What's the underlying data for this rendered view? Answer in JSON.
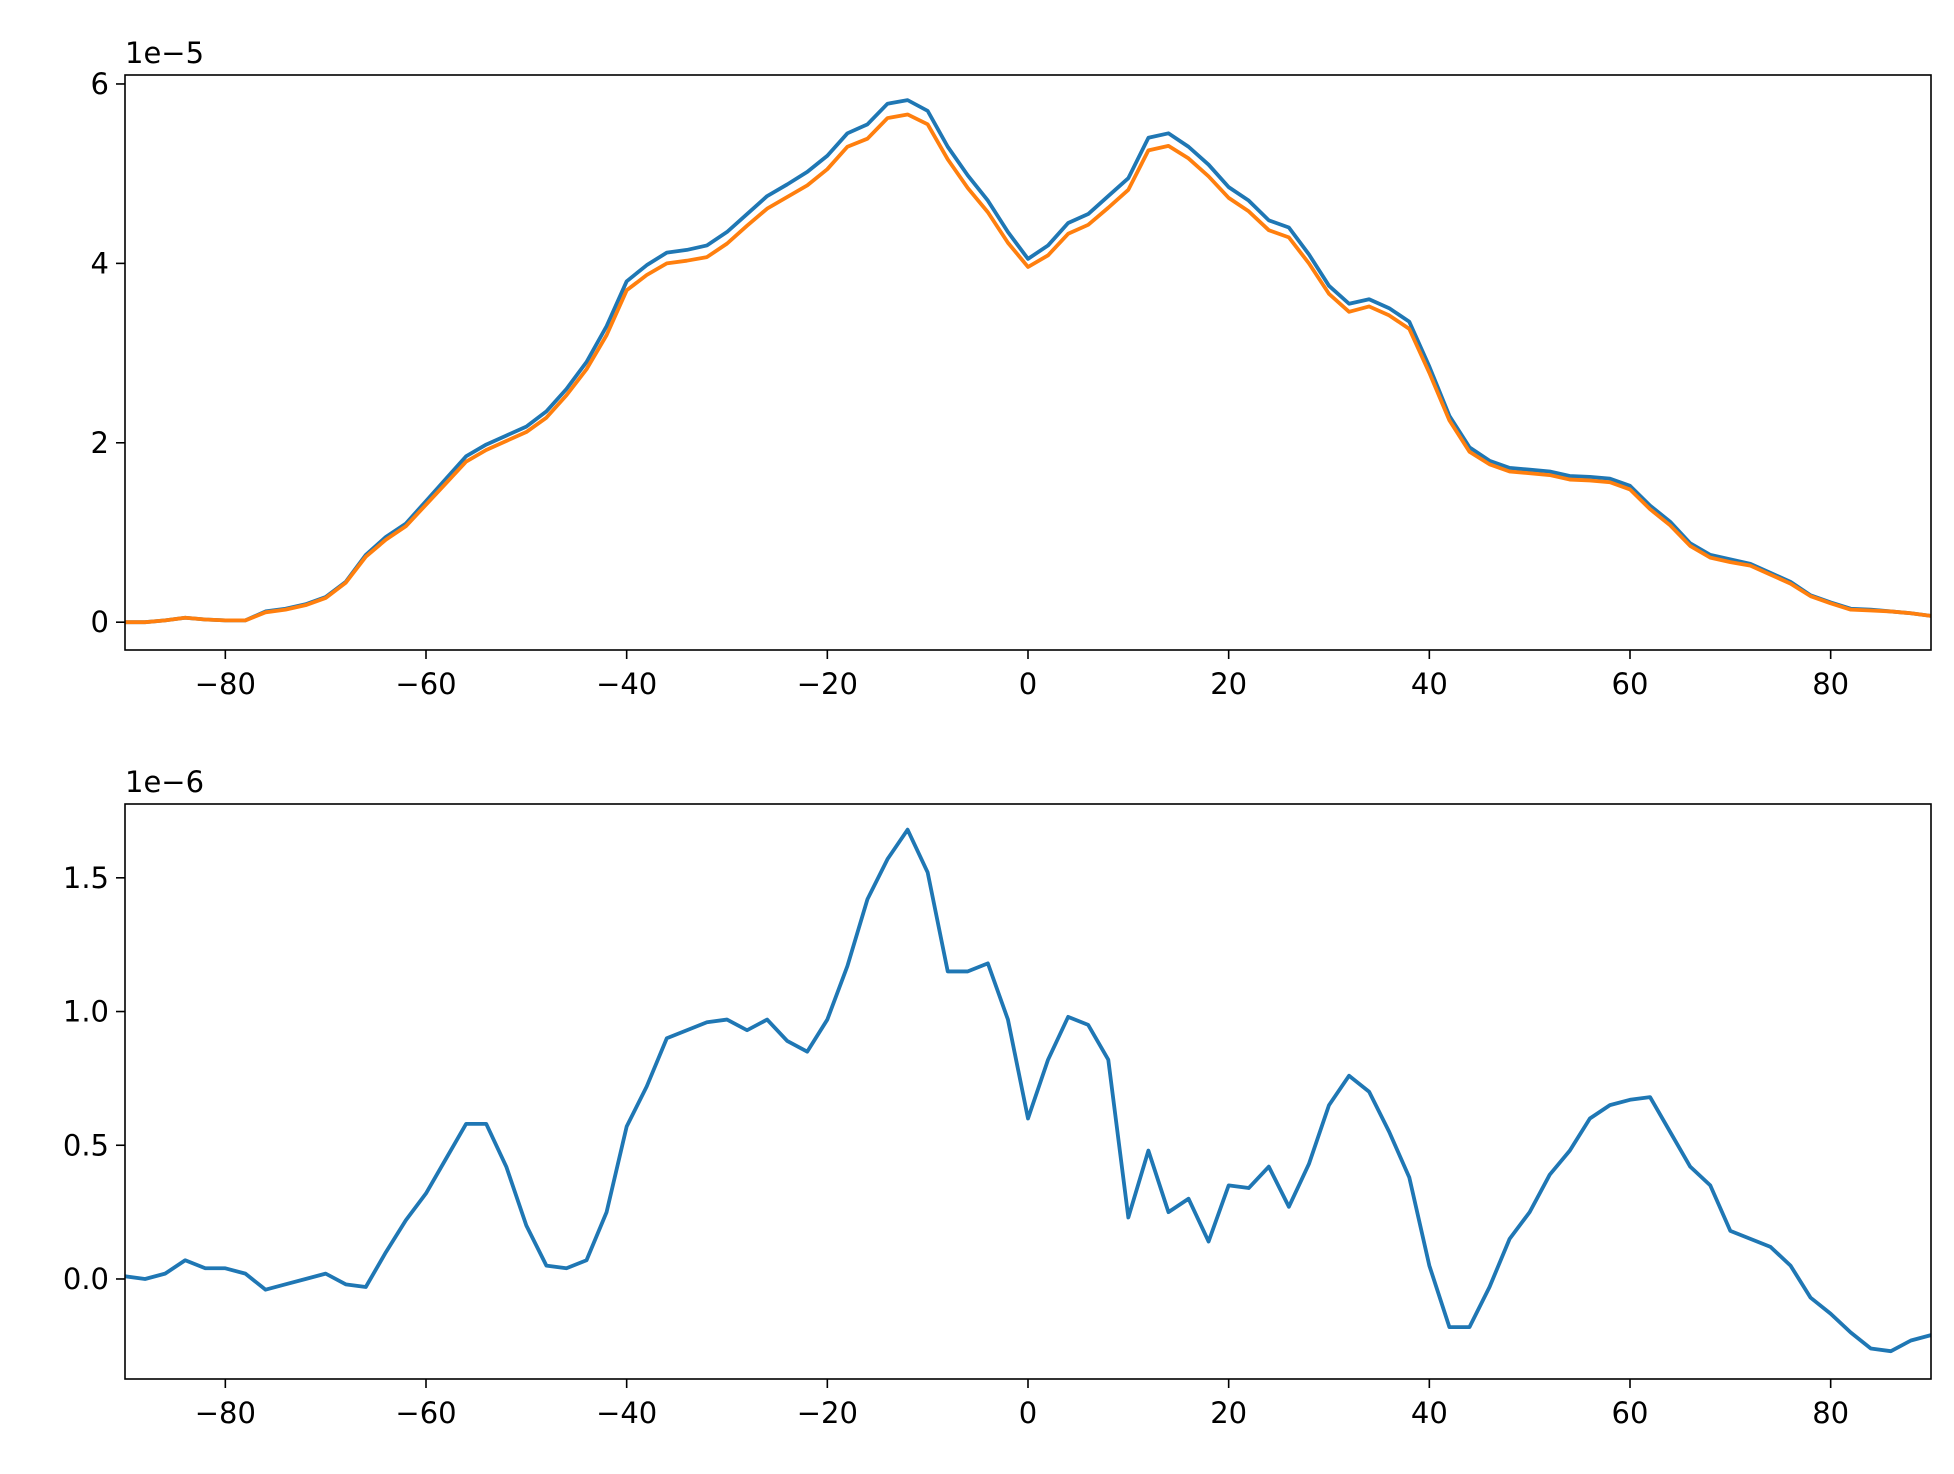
{
  "chart_data": [
    {
      "type": "line",
      "offset_text": "1e−5",
      "x": [
        -90,
        -88,
        -86,
        -84,
        -82,
        -80,
        -78,
        -76,
        -74,
        -72,
        -70,
        -68,
        -66,
        -64,
        -62,
        -60,
        -58,
        -56,
        -54,
        -52,
        -50,
        -48,
        -46,
        -44,
        -42,
        -40,
        -38,
        -36,
        -34,
        -32,
        -30,
        -28,
        -26,
        -24,
        -22,
        -20,
        -18,
        -16,
        -14,
        -12,
        -10,
        -8,
        -6,
        -4,
        -2,
        0,
        2,
        4,
        6,
        8,
        10,
        12,
        14,
        16,
        18,
        20,
        22,
        24,
        26,
        28,
        30,
        32,
        34,
        36,
        38,
        40,
        42,
        44,
        46,
        48,
        50,
        52,
        54,
        56,
        58,
        60,
        62,
        64,
        66,
        68,
        70,
        72,
        74,
        76,
        78,
        80,
        82,
        84,
        86,
        88,
        90
      ],
      "series": [
        {
          "color": "#1f77b4",
          "values": [
            0,
            0,
            0.02,
            0.05,
            0.03,
            0.02,
            0.02,
            0.12,
            0.15,
            0.2,
            0.28,
            0.45,
            0.75,
            0.95,
            1.1,
            1.35,
            1.6,
            1.85,
            1.98,
            2.08,
            2.18,
            2.35,
            2.6,
            2.9,
            3.3,
            3.8,
            3.98,
            4.12,
            4.15,
            4.2,
            4.35,
            4.55,
            4.75,
            4.88,
            5.02,
            5.2,
            5.45,
            5.55,
            5.78,
            5.82,
            5.7,
            5.3,
            4.98,
            4.7,
            4.35,
            4.05,
            4.2,
            4.45,
            4.55,
            4.75,
            4.95,
            5.4,
            5.45,
            5.3,
            5.1,
            4.85,
            4.7,
            4.48,
            4.4,
            4.1,
            3.75,
            3.55,
            3.6,
            3.5,
            3.35,
            2.85,
            2.3,
            1.95,
            1.8,
            1.72,
            1.7,
            1.68,
            1.63,
            1.62,
            1.6,
            1.52,
            1.3,
            1.12,
            0.88,
            0.75,
            0.7,
            0.65,
            0.55,
            0.45,
            0.3,
            0.22,
            0.15,
            0.14,
            0.12,
            0.1,
            0.07
          ]
        },
        {
          "color": "#ff7f0e",
          "values": [
            0,
            0,
            0.02,
            0.05,
            0.03,
            0.02,
            0.02,
            0.11,
            0.14,
            0.19,
            0.27,
            0.44,
            0.73,
            0.92,
            1.07,
            1.31,
            1.55,
            1.79,
            1.92,
            2.02,
            2.12,
            2.28,
            2.53,
            2.82,
            3.2,
            3.7,
            3.87,
            4.0,
            4.03,
            4.07,
            4.22,
            4.42,
            4.61,
            4.74,
            4.87,
            5.05,
            5.3,
            5.39,
            5.62,
            5.66,
            5.55,
            5.16,
            4.84,
            4.57,
            4.23,
            3.96,
            4.09,
            4.33,
            4.43,
            4.62,
            4.82,
            5.26,
            5.31,
            5.17,
            4.97,
            4.73,
            4.58,
            4.37,
            4.29,
            4.0,
            3.66,
            3.46,
            3.52,
            3.42,
            3.27,
            2.78,
            2.25,
            1.9,
            1.76,
            1.68,
            1.66,
            1.64,
            1.59,
            1.58,
            1.56,
            1.48,
            1.26,
            1.08,
            0.85,
            0.72,
            0.67,
            0.63,
            0.53,
            0.43,
            0.29,
            0.21,
            0.14,
            0.13,
            0.12,
            0.1,
            0.07
          ]
        }
      ],
      "xlim": [
        -90,
        90
      ],
      "xticks": [
        {
          "value": -80,
          "label": "−80"
        },
        {
          "value": -60,
          "label": "−60"
        },
        {
          "value": -40,
          "label": "−40"
        },
        {
          "value": -20,
          "label": "−20"
        },
        0,
        20,
        40,
        60,
        80
      ],
      "ylim": [
        -0.31,
        6.1
      ],
      "yticks": [
        0,
        2,
        4,
        6
      ]
    },
    {
      "type": "line",
      "offset_text": "1e−6",
      "x": [
        -90,
        -88,
        -86,
        -84,
        -82,
        -80,
        -78,
        -76,
        -74,
        -72,
        -70,
        -68,
        -66,
        -64,
        -62,
        -60,
        -58,
        -56,
        -54,
        -52,
        -50,
        -48,
        -46,
        -44,
        -42,
        -40,
        -38,
        -36,
        -34,
        -32,
        -30,
        -28,
        -26,
        -24,
        -22,
        -20,
        -18,
        -16,
        -14,
        -12,
        -10,
        -8,
        -6,
        -4,
        -2,
        0,
        2,
        4,
        6,
        8,
        10,
        12,
        14,
        16,
        18,
        20,
        22,
        24,
        26,
        28,
        30,
        32,
        34,
        36,
        38,
        40,
        42,
        44,
        46,
        48,
        50,
        52,
        54,
        56,
        58,
        60,
        62,
        64,
        66,
        68,
        70,
        72,
        74,
        76,
        78,
        80,
        82,
        84,
        86,
        88,
        90
      ],
      "series": [
        {
          "color": "#1f77b4",
          "values": [
            0.01,
            0.0,
            0.02,
            0.07,
            0.04,
            0.04,
            0.02,
            -0.04,
            -0.02,
            0.0,
            0.02,
            -0.02,
            -0.03,
            0.1,
            0.22,
            0.32,
            0.45,
            0.58,
            0.58,
            0.42,
            0.2,
            0.05,
            0.04,
            0.07,
            0.25,
            0.57,
            0.72,
            0.9,
            0.93,
            0.96,
            0.97,
            0.93,
            0.97,
            0.89,
            0.85,
            0.97,
            1.17,
            1.42,
            1.57,
            1.68,
            1.52,
            1.15,
            1.15,
            1.18,
            0.97,
            0.6,
            0.82,
            0.98,
            0.95,
            0.82,
            0.23,
            0.48,
            0.25,
            0.3,
            0.14,
            0.35,
            0.34,
            0.42,
            0.27,
            0.43,
            0.65,
            0.76,
            0.7,
            0.55,
            0.38,
            0.05,
            -0.18,
            -0.18,
            -0.03,
            0.15,
            0.25,
            0.39,
            0.48,
            0.6,
            0.65,
            0.67,
            0.68,
            0.55,
            0.42,
            0.35,
            0.18,
            0.15,
            0.12,
            0.05,
            -0.07,
            -0.13,
            -0.2,
            -0.26,
            -0.27,
            -0.23,
            -0.21
          ]
        }
      ],
      "xlim": [
        -90,
        90
      ],
      "xticks": [
        {
          "value": -80,
          "label": "−80"
        },
        {
          "value": -60,
          "label": "−60"
        },
        {
          "value": -40,
          "label": "−40"
        },
        {
          "value": -20,
          "label": "−20"
        },
        0,
        20,
        40,
        60,
        80
      ],
      "ylim": [
        -0.374,
        1.776
      ],
      "yticks": [
        {
          "value": 0,
          "label": "0.0"
        },
        {
          "value": 0.5,
          "label": "0.5"
        },
        {
          "value": 1.0,
          "label": "1.0"
        },
        {
          "value": 1.5,
          "label": "1.5"
        }
      ]
    }
  ]
}
